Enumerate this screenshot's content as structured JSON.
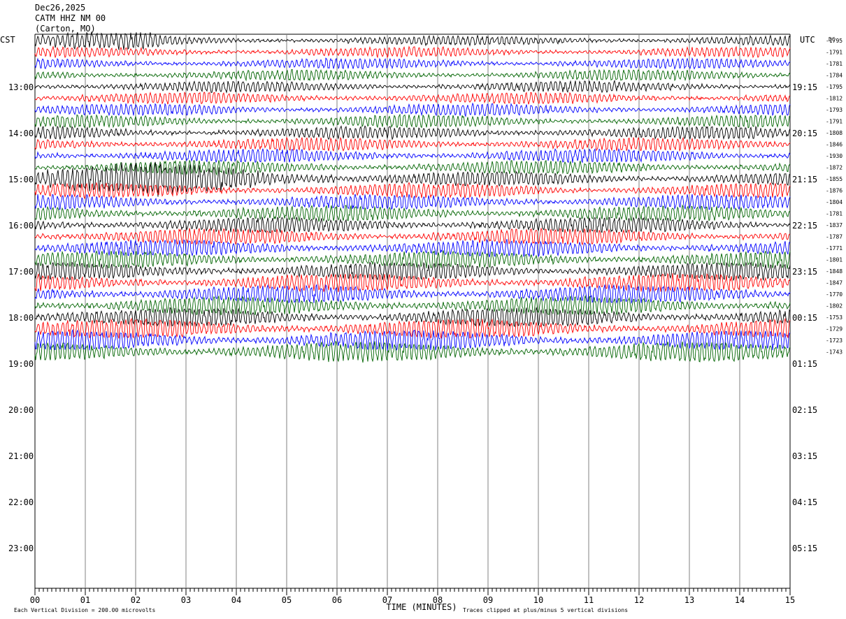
{
  "header": {
    "date": "Dec26,2025",
    "station": "CATM HHZ NM 00",
    "location": "(Carton, MO)"
  },
  "chart_data": {
    "type": "line",
    "title": "",
    "xlabel": "TIME (MINUTES)",
    "x_ticks": [
      "00",
      "01",
      "02",
      "03",
      "04",
      "05",
      "06",
      "07",
      "08",
      "09",
      "10",
      "11",
      "12",
      "13",
      "14",
      "15"
    ],
    "xlim": [
      0,
      15
    ],
    "left_axis_label": "CST",
    "right_axis_label": "UTC",
    "dc_label": "DC",
    "left_hour_labels": [
      "13:00",
      "14:00",
      "15:00",
      "16:00",
      "17:00",
      "18:00",
      "19:00",
      "20:00",
      "21:00",
      "22:00",
      "23:00"
    ],
    "right_hour_labels": [
      "19:15",
      "20:15",
      "21:15",
      "22:15",
      "23:15",
      "00:15",
      "01:15",
      "02:15",
      "03:15",
      "04:15",
      "05:15"
    ],
    "trace_colors": [
      "#000000",
      "#ff0000",
      "#0000ff",
      "#006400"
    ],
    "dc_offsets": [
      -1795,
      -1791,
      -1781,
      -1784,
      -1795,
      -1812,
      -1793,
      -1791,
      -1808,
      -1846,
      -1930,
      -1872,
      -1855,
      -1876,
      -1804,
      -1781,
      -1837,
      -1787,
      -1771,
      -1801,
      -1848,
      -1847,
      -1770,
      -1802,
      -1753,
      -1729,
      -1723,
      -1743
    ],
    "footer_left": "Each Vertical Division =  200.00 microvolts",
    "footer_right": "Traces clipped at plus/minus 5 vertical divisions",
    "grid": true
  }
}
